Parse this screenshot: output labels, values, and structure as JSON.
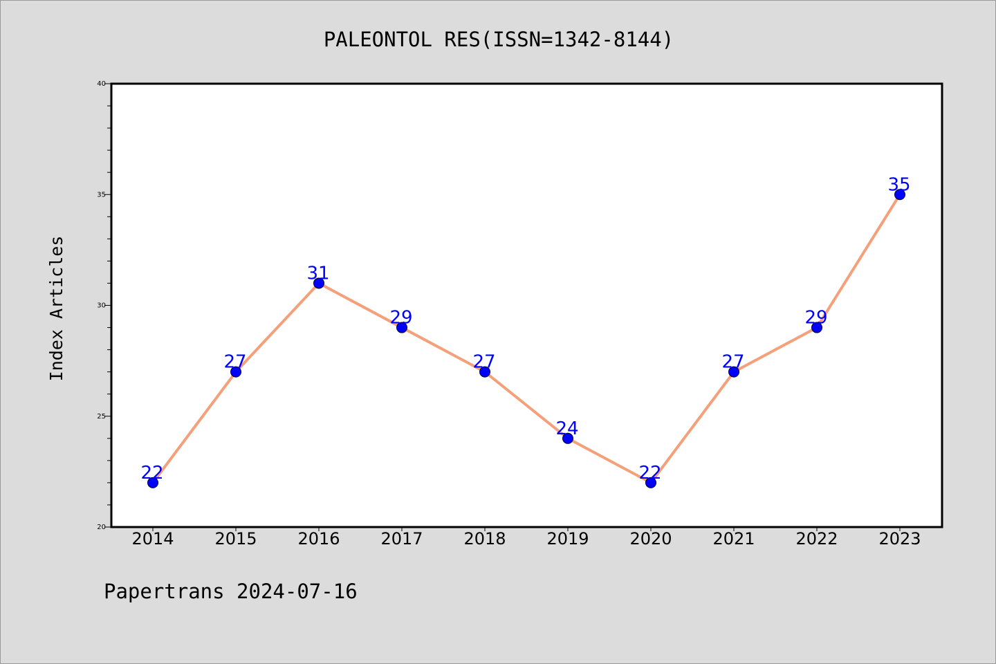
{
  "chart_data": {
    "type": "line",
    "title": "PALEONTOL RES(ISSN=1342-8144)",
    "xlabel": "",
    "ylabel": "Index Articles",
    "categories": [
      "2014",
      "2015",
      "2016",
      "2017",
      "2018",
      "2019",
      "2020",
      "2021",
      "2022",
      "2023"
    ],
    "series": [
      {
        "values": [
          22,
          27,
          31,
          29,
          27,
          24,
          22,
          27,
          29,
          35
        ],
        "line_color": "#f4a07a",
        "marker_color": "#0000ff"
      }
    ],
    "ylim": [
      20,
      40
    ],
    "yticks": [
      "20",
      "25",
      "30",
      "35",
      "40"
    ],
    "data_labels": [
      "22",
      "27",
      "31",
      "29",
      "27",
      "24",
      "22",
      "27",
      "29",
      "35"
    ],
    "data_label_color": "#0000ff",
    "grid": false,
    "legend": "none"
  },
  "footer": {
    "text": "Papertrans 2024-07-16"
  }
}
